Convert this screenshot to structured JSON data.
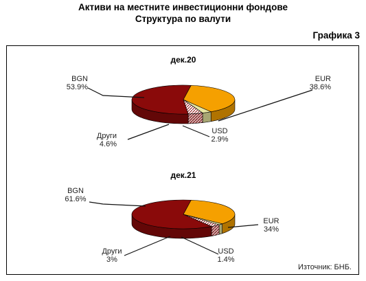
{
  "header": {
    "title_line1": "Активи на местните инвестиционни фондове",
    "title_line2": "Структура по валути",
    "figure_label": "Графика 3"
  },
  "source": "Източник: БНБ.",
  "colors": {
    "BGN": "#8a0a0a",
    "EUR": "#f5a000",
    "USD": "#e8e6a0",
    "Other": "#f2d0d0"
  },
  "chart_data": [
    {
      "type": "pie",
      "title": "дек.20",
      "slices": [
        {
          "name": "BGN",
          "value": 53.9,
          "label": "53.9%"
        },
        {
          "name": "EUR",
          "value": 38.6,
          "label": "38.6%"
        },
        {
          "name": "USD",
          "value": 2.9,
          "label": "2.9%"
        },
        {
          "name": "Други",
          "value": 4.6,
          "label": "4.6%"
        }
      ]
    },
    {
      "type": "pie",
      "title": "дек.21",
      "slices": [
        {
          "name": "BGN",
          "value": 61.6,
          "label": "61.6%"
        },
        {
          "name": "EUR",
          "value": 34,
          "label": "34%"
        },
        {
          "name": "USD",
          "value": 1.4,
          "label": "1.4%"
        },
        {
          "name": "Други",
          "value": 3,
          "label": "3%"
        }
      ]
    }
  ]
}
